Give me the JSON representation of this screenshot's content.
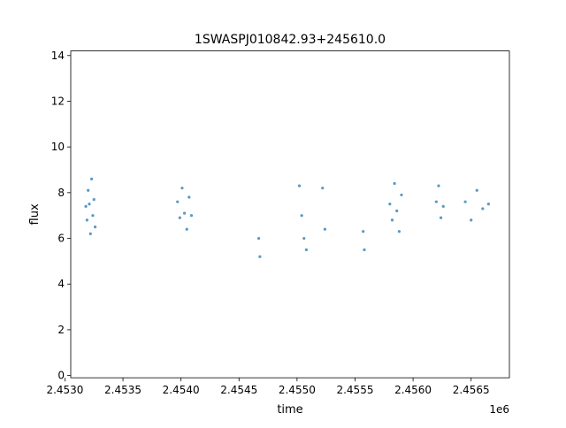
{
  "chart_data": {
    "type": "scatter",
    "title": "1SWASPJ010842.93+245610.0",
    "xlabel": "time",
    "ylabel": "flux",
    "x_offset_label": "1e6",
    "xlim": [
      2.45305,
      2.45683
    ],
    "ylim": [
      -0.1,
      14.2
    ],
    "x_ticks": [
      2.453,
      2.4535,
      2.454,
      2.4545,
      2.455,
      2.4555,
      2.456,
      2.4565
    ],
    "x_tick_labels": [
      "2.4530",
      "2.4535",
      "2.4540",
      "2.4545",
      "2.4550",
      "2.4555",
      "2.4560",
      "2.4565"
    ],
    "y_ticks": [
      0,
      2,
      4,
      6,
      8,
      10,
      12,
      14
    ],
    "y_tick_labels": [
      "0",
      "2",
      "4",
      "6",
      "8",
      "10",
      "12",
      "14"
    ],
    "grid": false,
    "marker_color": "#1f77b4",
    "series": [
      {
        "values_note": "",
        "x": [
          2.45318,
          2.45319,
          2.4532,
          2.45321,
          2.45322,
          2.45323,
          2.45324,
          2.45325,
          2.45326,
          2.45397,
          2.45399,
          2.45401,
          2.45403,
          2.45405,
          2.45407,
          2.45409,
          2.45467,
          2.45468,
          2.45502,
          2.45504,
          2.45506,
          2.45508,
          2.45522,
          2.45524,
          2.45557,
          2.45558,
          2.4558,
          2.45582,
          2.45584,
          2.45586,
          2.45588,
          2.4559,
          2.4562,
          2.45622,
          2.45624,
          2.45626,
          2.45645,
          2.4565,
          2.45655,
          2.4566,
          2.45665
        ],
        "y": [
          7.4,
          6.8,
          8.1,
          7.5,
          6.2,
          8.6,
          7.0,
          7.7,
          6.5,
          7.6,
          6.9,
          8.2,
          7.1,
          6.4,
          7.8,
          7.0,
          6.0,
          5.2,
          8.3,
          7.0,
          6.0,
          5.5,
          8.2,
          6.4,
          6.3,
          5.5,
          7.5,
          6.8,
          8.4,
          7.2,
          6.3,
          7.9,
          7.6,
          8.3,
          6.9,
          7.4,
          7.6,
          6.8,
          8.1,
          7.3,
          7.5
        ]
      }
    ]
  }
}
